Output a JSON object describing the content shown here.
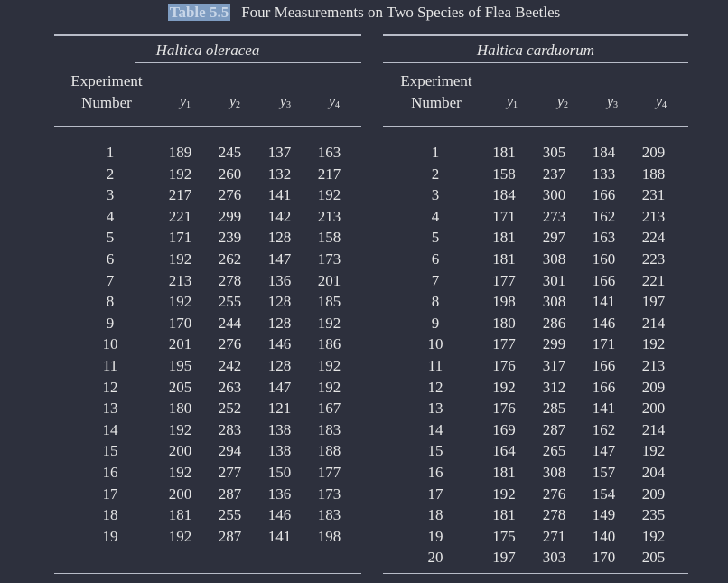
{
  "title": {
    "label": "Table 5.5",
    "text": "Four Measurements on Two Species of Flea Beetles"
  },
  "left": {
    "species": "Haltica oleracea",
    "exp_header_line1": "Experiment",
    "exp_header_line2": "Number",
    "var_headers": [
      "y",
      "y",
      "y",
      "y"
    ],
    "var_subscripts": [
      "1",
      "2",
      "3",
      "4"
    ],
    "rows": [
      [
        "1",
        "189",
        "245",
        "137",
        "163"
      ],
      [
        "2",
        "192",
        "260",
        "132",
        "217"
      ],
      [
        "3",
        "217",
        "276",
        "141",
        "192"
      ],
      [
        "4",
        "221",
        "299",
        "142",
        "213"
      ],
      [
        "5",
        "171",
        "239",
        "128",
        "158"
      ],
      [
        "6",
        "192",
        "262",
        "147",
        "173"
      ],
      [
        "7",
        "213",
        "278",
        "136",
        "201"
      ],
      [
        "8",
        "192",
        "255",
        "128",
        "185"
      ],
      [
        "9",
        "170",
        "244",
        "128",
        "192"
      ],
      [
        "10",
        "201",
        "276",
        "146",
        "186"
      ],
      [
        "11",
        "195",
        "242",
        "128",
        "192"
      ],
      [
        "12",
        "205",
        "263",
        "147",
        "192"
      ],
      [
        "13",
        "180",
        "252",
        "121",
        "167"
      ],
      [
        "14",
        "192",
        "283",
        "138",
        "183"
      ],
      [
        "15",
        "200",
        "294",
        "138",
        "188"
      ],
      [
        "16",
        "192",
        "277",
        "150",
        "177"
      ],
      [
        "17",
        "200",
        "287",
        "136",
        "173"
      ],
      [
        "18",
        "181",
        "255",
        "146",
        "183"
      ],
      [
        "19",
        "192",
        "287",
        "141",
        "198"
      ]
    ]
  },
  "right": {
    "species": "Haltica carduorum",
    "exp_header_line1": "Experiment",
    "exp_header_line2": "Number",
    "var_headers": [
      "y",
      "y",
      "y",
      "y"
    ],
    "var_subscripts": [
      "1",
      "2",
      "3",
      "4"
    ],
    "rows": [
      [
        "1",
        "181",
        "305",
        "184",
        "209"
      ],
      [
        "2",
        "158",
        "237",
        "133",
        "188"
      ],
      [
        "3",
        "184",
        "300",
        "166",
        "231"
      ],
      [
        "4",
        "171",
        "273",
        "162",
        "213"
      ],
      [
        "5",
        "181",
        "297",
        "163",
        "224"
      ],
      [
        "6",
        "181",
        "308",
        "160",
        "223"
      ],
      [
        "7",
        "177",
        "301",
        "166",
        "221"
      ],
      [
        "8",
        "198",
        "308",
        "141",
        "197"
      ],
      [
        "9",
        "180",
        "286",
        "146",
        "214"
      ],
      [
        "10",
        "177",
        "299",
        "171",
        "192"
      ],
      [
        "11",
        "176",
        "317",
        "166",
        "213"
      ],
      [
        "12",
        "192",
        "312",
        "166",
        "209"
      ],
      [
        "13",
        "176",
        "285",
        "141",
        "200"
      ],
      [
        "14",
        "169",
        "287",
        "162",
        "214"
      ],
      [
        "15",
        "164",
        "265",
        "147",
        "192"
      ],
      [
        "16",
        "181",
        "308",
        "157",
        "204"
      ],
      [
        "17",
        "192",
        "276",
        "154",
        "209"
      ],
      [
        "18",
        "181",
        "278",
        "149",
        "235"
      ],
      [
        "19",
        "175",
        "271",
        "140",
        "192"
      ],
      [
        "20",
        "197",
        "303",
        "170",
        "205"
      ]
    ]
  }
}
